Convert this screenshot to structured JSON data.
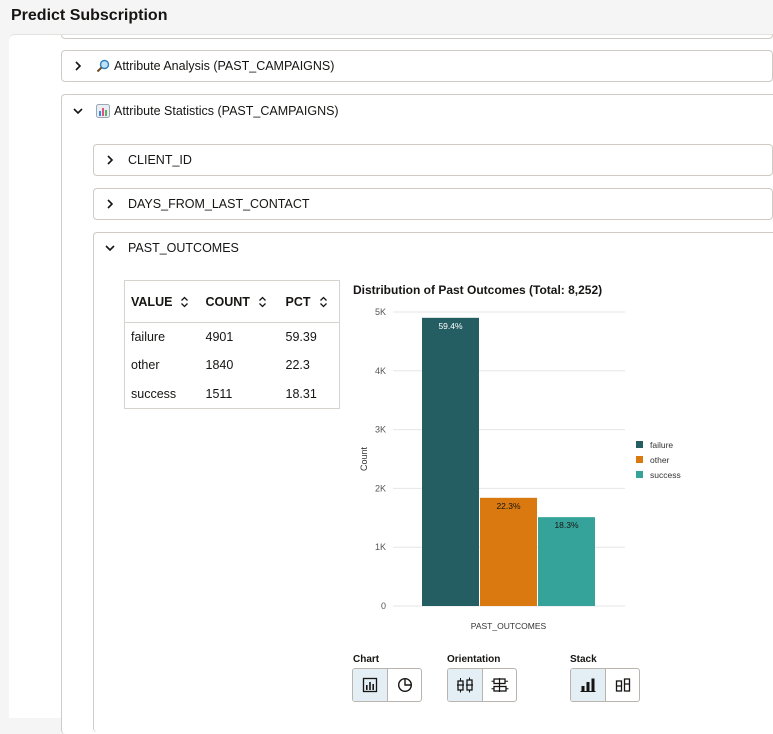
{
  "app": {
    "title": "Predict Subscription"
  },
  "sections": {
    "attribute_analysis": {
      "label": "Attribute Analysis (PAST_CAMPAIGNS)",
      "icon": "magnifier-icon"
    },
    "attribute_statistics": {
      "label": "Attribute Statistics (PAST_CAMPAIGNS)",
      "icon": "bar-chart-emoji-icon"
    }
  },
  "attributes": {
    "client_id": {
      "label": "CLIENT_ID"
    },
    "days_from_last_contact": {
      "label": "DAYS_FROM_LAST_CONTACT"
    },
    "past_outcomes": {
      "label": "PAST_OUTCOMES"
    }
  },
  "table": {
    "headers": [
      "VALUE",
      "COUNT",
      "PCT"
    ],
    "rows": [
      [
        "failure",
        "4901",
        "59.39"
      ],
      [
        "other",
        "1840",
        "22.3"
      ],
      [
        "success",
        "1511",
        "18.31"
      ]
    ]
  },
  "chart_data": {
    "type": "bar",
    "title": "Distribution of Past Outcomes (Total: 8,252)",
    "xlabel": "PAST_OUTCOMES",
    "ylabel": "Count",
    "ylim": [
      0,
      5000
    ],
    "yticks": [
      0,
      1000,
      2000,
      3000,
      4000,
      5000
    ],
    "ytick_labels": [
      "0",
      "1K",
      "2K",
      "3K",
      "4K",
      "5K"
    ],
    "grid": true,
    "legend": "right",
    "series": [
      {
        "name": "failure",
        "value": 4901,
        "label": "59.4%",
        "color": "#255e62"
      },
      {
        "name": "other",
        "value": 1840,
        "label": "22.3%",
        "color": "#d9790f"
      },
      {
        "name": "success",
        "value": 1511,
        "label": "18.3%",
        "color": "#35a39a"
      }
    ]
  },
  "controls": {
    "chart": {
      "label": "Chart",
      "options": [
        "bar-chart-icon",
        "pie-chart-icon"
      ],
      "selected": 0
    },
    "orientation": {
      "label": "Orientation",
      "options": [
        "vertical-bars-icon",
        "horizontal-bars-icon"
      ],
      "selected": 0
    },
    "stack": {
      "label": "Stack",
      "options": [
        "stacked-icon",
        "unstacked-icon"
      ],
      "selected": 0
    }
  },
  "colors": {
    "accent_selected": "#e4eff5",
    "border": "#cfcac4"
  }
}
